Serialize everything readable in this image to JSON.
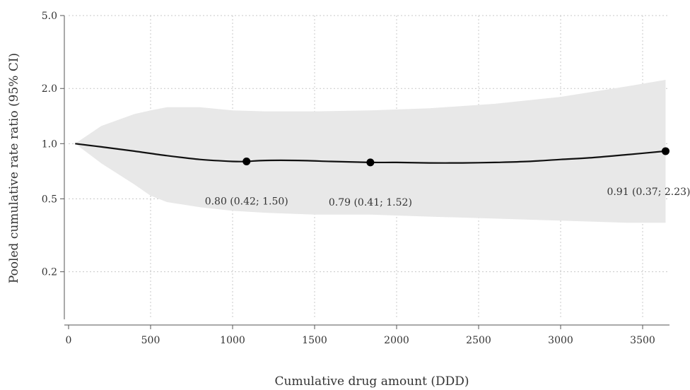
{
  "chart_data": {
    "type": "line",
    "title": "",
    "xlabel": "Cumulative drug amount (DDD)",
    "ylabel": "Pooled cumulative rate ratio (95% CI)",
    "x_scale": "linear",
    "y_scale": "log",
    "xlim": [
      0,
      3700
    ],
    "ylim": [
      0.11,
      5.0
    ],
    "x_ticks": [
      0,
      500,
      1000,
      1500,
      2000,
      2500,
      3000,
      3500
    ],
    "y_ticks": [
      0.2,
      0.5,
      1.0,
      2.0,
      5.0
    ],
    "x_tick_labels": [
      "0",
      "500",
      "1000",
      "1500",
      "2000",
      "2500",
      "3000",
      "3500"
    ],
    "y_tick_labels": [
      "0.2",
      "0.5",
      "1.0",
      "2.0",
      "5.0"
    ],
    "grid": true,
    "series": [
      {
        "type": "line",
        "x": [
          40,
          200,
          400,
          600,
          800,
          1000,
          1085,
          1200,
          1400,
          1600,
          1840,
          2000,
          2200,
          2400,
          2600,
          2800,
          3000,
          3200,
          3400,
          3640
        ],
        "y": [
          1.0,
          0.96,
          0.91,
          0.86,
          0.82,
          0.8,
          0.8,
          0.81,
          0.81,
          0.8,
          0.79,
          0.79,
          0.785,
          0.785,
          0.79,
          0.8,
          0.82,
          0.84,
          0.87,
          0.91
        ]
      },
      {
        "type": "band",
        "x": [
          40,
          200,
          400,
          500,
          600,
          800,
          1000,
          1200,
          1500,
          1840,
          2200,
          2600,
          3000,
          3400,
          3640
        ],
        "lower": [
          1.0,
          0.78,
          0.6,
          0.52,
          0.48,
          0.45,
          0.43,
          0.42,
          0.41,
          0.41,
          0.4,
          0.39,
          0.38,
          0.37,
          0.37
        ],
        "upper": [
          1.0,
          1.25,
          1.45,
          1.52,
          1.58,
          1.58,
          1.52,
          1.5,
          1.5,
          1.52,
          1.56,
          1.65,
          1.8,
          2.05,
          2.23
        ]
      }
    ],
    "points": [
      {
        "x": 1085,
        "y": 0.8,
        "label": "0.80 (0.42; 1.50)"
      },
      {
        "x": 1840,
        "y": 0.79,
        "label": "0.79 (0.41; 1.52)"
      },
      {
        "x": 3640,
        "y": 0.91,
        "label": "0.91 (0.37; 2.23)"
      }
    ],
    "colors": {
      "line": "#111111",
      "band": "#e8e8e8",
      "points": "#000000"
    }
  }
}
